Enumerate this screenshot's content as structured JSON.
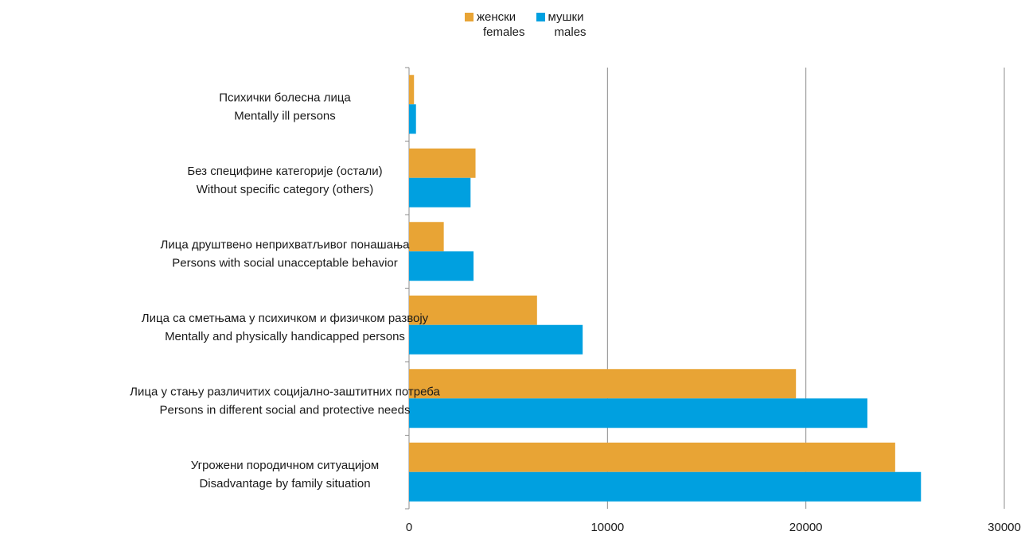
{
  "chart_data": {
    "type": "bar",
    "orientation": "horizontal",
    "categories": [
      {
        "line1": "Угрожени породичном ситуацијом",
        "line2": "Disadvantage by family situation"
      },
      {
        "line1": "Лица у стању различитих социјално-заштитних потреба",
        "line2": "Persons in different social and protective needs"
      },
      {
        "line1": "Лица са сметњама у психичком и физичком развоју",
        "line2": "Mentally and physically handicapped persons"
      },
      {
        "line1": "Лица друштвено неприхватљивог понашања",
        "line2": "Persons with social unacceptable behavior"
      },
      {
        "line1": "Без специфине категорије (остали)",
        "line2": "Without specific category (others)"
      },
      {
        "line1": "Психички болесна лица",
        "line2": "Mentally ill persons"
      }
    ],
    "series": [
      {
        "name_sr": "женски",
        "name_en": "females",
        "color": "#e8a435",
        "values": [
          24500,
          19500,
          6450,
          1750,
          3350,
          250
        ]
      },
      {
        "name_sr": "мушки",
        "name_en": "males",
        "color": "#00a0e0",
        "values": [
          25800,
          23100,
          8750,
          3250,
          3100,
          350
        ]
      }
    ],
    "xlim": [
      0,
      30000
    ],
    "xticks": [
      "0",
      "10000",
      "20000",
      "30000"
    ],
    "grid": "vertical",
    "legend_position": "top-center",
    "title": "",
    "xlabel": "",
    "ylabel": ""
  }
}
